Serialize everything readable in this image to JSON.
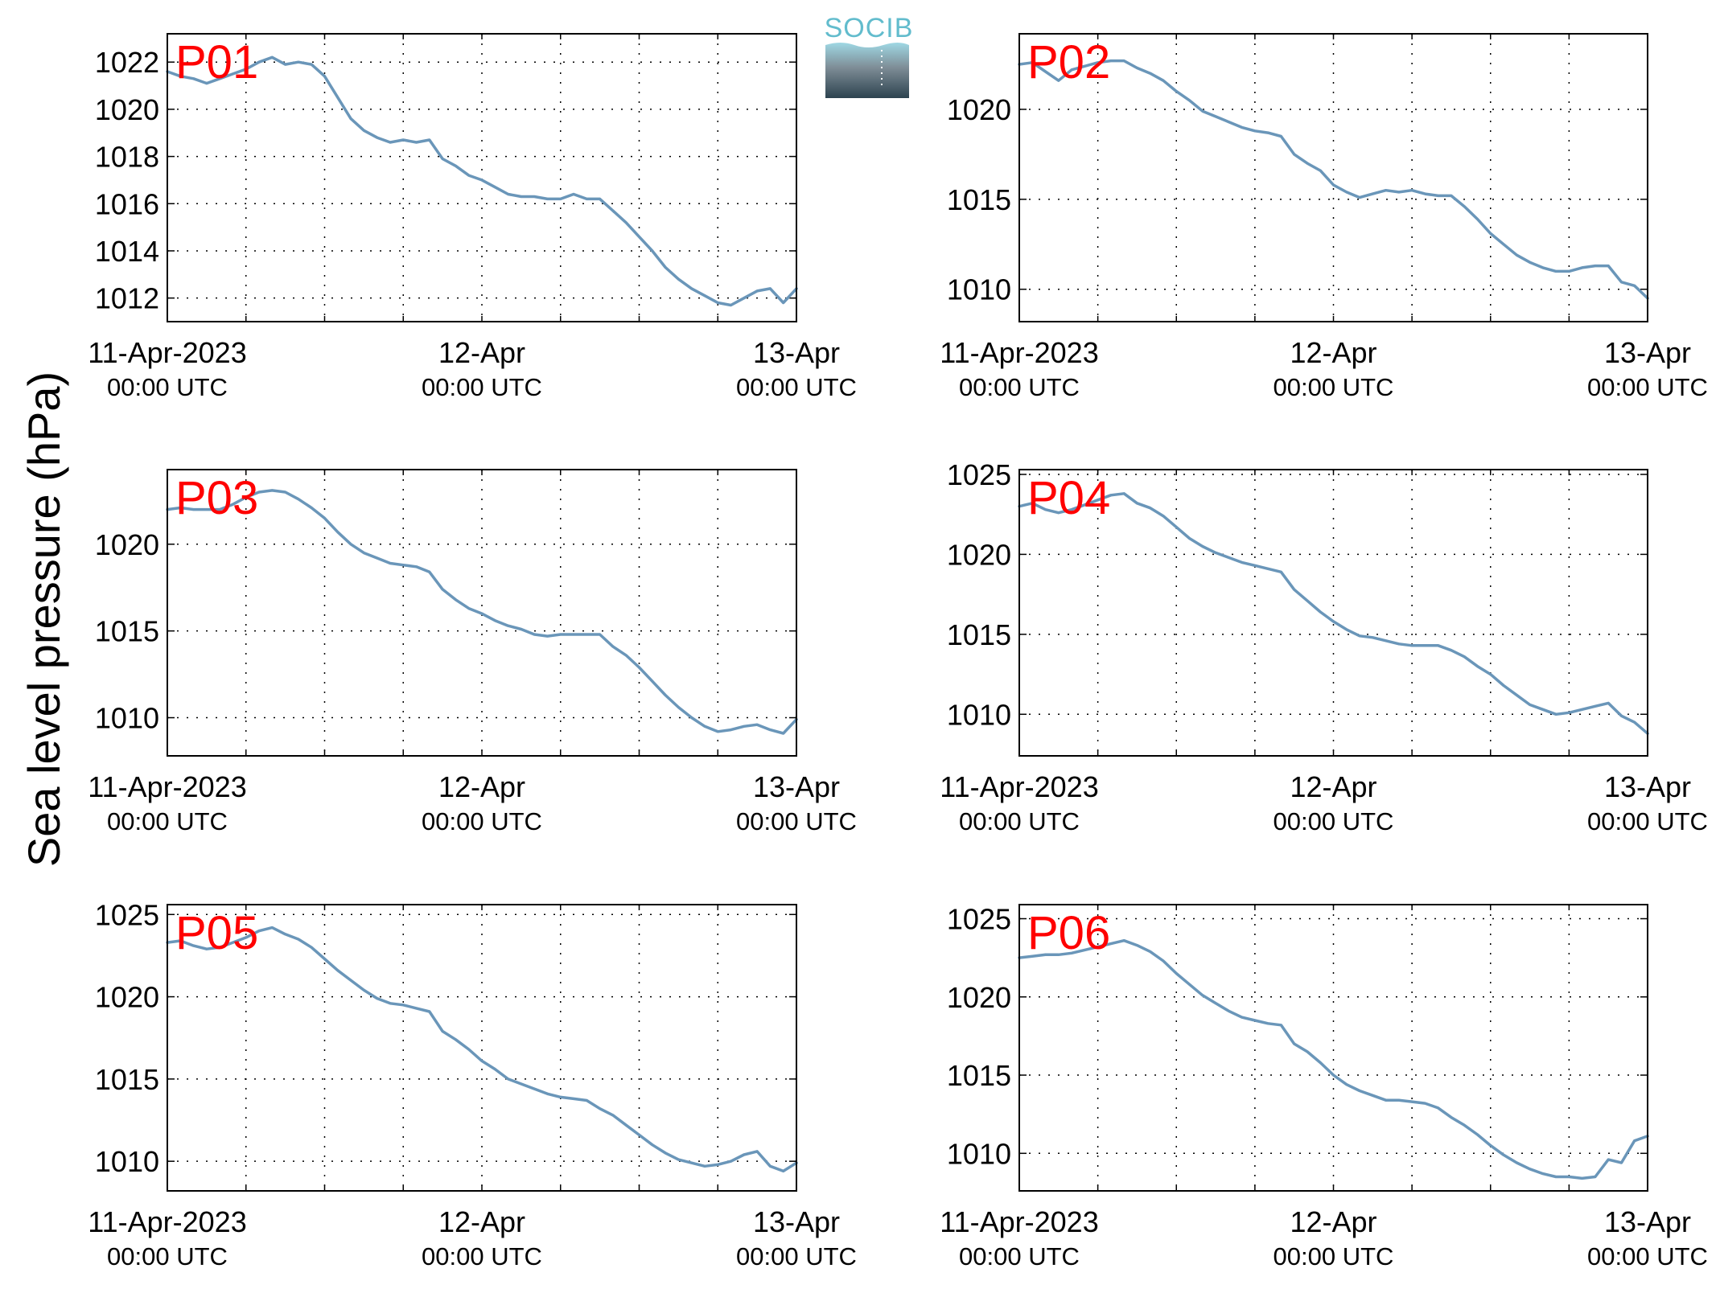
{
  "logo": {
    "text": "SOCIB"
  },
  "chart_data": {
    "type": "line",
    "ylabel": "Sea level pressure (hPa)",
    "line_color": "#6a96b9",
    "grid": true,
    "x_ticks": [
      {
        "x": 0,
        "label": "11-Apr-2023",
        "sublabel": "00:00 UTC"
      },
      {
        "x": 24,
        "label": "12-Apr",
        "sublabel": "00:00 UTC"
      },
      {
        "x": 48,
        "label": "13-Apr",
        "sublabel": "00:00 UTC"
      }
    ],
    "x_unit": "hours since 11-Apr-2023 00:00 UTC",
    "xlim": [
      0,
      48
    ],
    "panels": [
      {
        "name": "P01",
        "ylim": [
          1011,
          1023.2
        ],
        "yticks": [
          1012,
          1014,
          1016,
          1018,
          1020,
          1022
        ],
        "x": [
          0,
          1,
          2,
          3,
          4,
          5,
          6,
          7,
          8,
          9,
          10,
          11,
          12,
          13,
          14,
          15,
          16,
          17,
          18,
          19,
          20,
          21,
          22,
          23,
          24,
          25,
          26,
          27,
          28,
          29,
          30,
          31,
          32,
          33,
          34,
          35,
          36,
          37,
          38,
          39,
          40,
          41,
          42,
          43,
          44,
          45,
          46,
          47,
          48
        ],
        "y": [
          1021.6,
          1021.4,
          1021.3,
          1021.1,
          1021.3,
          1021.5,
          1021.7,
          1022.0,
          1022.2,
          1021.9,
          1022.0,
          1021.9,
          1021.4,
          1020.5,
          1019.6,
          1019.1,
          1018.8,
          1018.6,
          1018.7,
          1018.6,
          1018.7,
          1017.9,
          1017.6,
          1017.2,
          1017.0,
          1016.7,
          1016.4,
          1016.3,
          1016.3,
          1016.2,
          1016.2,
          1016.4,
          1016.2,
          1016.2,
          1015.7,
          1015.2,
          1014.6,
          1014.0,
          1013.3,
          1012.8,
          1012.4,
          1012.1,
          1011.8,
          1011.7,
          1012.0,
          1012.3,
          1012.4,
          1011.8,
          1012.4
        ]
      },
      {
        "name": "P02",
        "ylim": [
          1008.2,
          1024.2
        ],
        "yticks": [
          1010,
          1015,
          1020
        ],
        "x": [
          0,
          1,
          2,
          3,
          4,
          5,
          6,
          7,
          8,
          9,
          10,
          11,
          12,
          13,
          14,
          15,
          16,
          17,
          18,
          19,
          20,
          21,
          22,
          23,
          24,
          25,
          26,
          27,
          28,
          29,
          30,
          31,
          32,
          33,
          34,
          35,
          36,
          37,
          38,
          39,
          40,
          41,
          42,
          43,
          44,
          45,
          46,
          47,
          48
        ],
        "y": [
          1022.5,
          1022.6,
          1022.1,
          1021.6,
          1022.2,
          1022.4,
          1022.6,
          1022.7,
          1022.7,
          1022.3,
          1022.0,
          1021.6,
          1021.0,
          1020.5,
          1019.9,
          1019.6,
          1019.3,
          1019.0,
          1018.8,
          1018.7,
          1018.5,
          1017.5,
          1017.0,
          1016.6,
          1015.8,
          1015.4,
          1015.1,
          1015.3,
          1015.5,
          1015.4,
          1015.5,
          1015.3,
          1015.2,
          1015.2,
          1014.6,
          1013.9,
          1013.1,
          1012.5,
          1011.9,
          1011.5,
          1011.2,
          1011.0,
          1011.0,
          1011.2,
          1011.3,
          1011.3,
          1010.4,
          1010.2,
          1009.5
        ]
      },
      {
        "name": "P03",
        "ylim": [
          1007.8,
          1024.3
        ],
        "yticks": [
          1010,
          1015,
          1020
        ],
        "x": [
          0,
          1,
          2,
          3,
          4,
          5,
          6,
          7,
          8,
          9,
          10,
          11,
          12,
          13,
          14,
          15,
          16,
          17,
          18,
          19,
          20,
          21,
          22,
          23,
          24,
          25,
          26,
          27,
          28,
          29,
          30,
          31,
          32,
          33,
          34,
          35,
          36,
          37,
          38,
          39,
          40,
          41,
          42,
          43,
          44,
          45,
          46,
          47,
          48
        ],
        "y": [
          1022.0,
          1022.1,
          1022.0,
          1022.0,
          1022.0,
          1022.3,
          1022.7,
          1023.0,
          1023.1,
          1023.0,
          1022.6,
          1022.1,
          1021.5,
          1020.7,
          1020.0,
          1019.5,
          1019.2,
          1018.9,
          1018.8,
          1018.7,
          1018.4,
          1017.4,
          1016.8,
          1016.3,
          1016.0,
          1015.6,
          1015.3,
          1015.1,
          1014.8,
          1014.7,
          1014.8,
          1014.8,
          1014.8,
          1014.8,
          1014.1,
          1013.6,
          1012.9,
          1012.1,
          1011.3,
          1010.6,
          1010.0,
          1009.5,
          1009.2,
          1009.3,
          1009.5,
          1009.6,
          1009.3,
          1009.1,
          1009.9
        ]
      },
      {
        "name": "P04",
        "ylim": [
          1007.4,
          1025.3
        ],
        "yticks": [
          1010,
          1015,
          1020,
          1025
        ],
        "x": [
          0,
          1,
          2,
          3,
          4,
          5,
          6,
          7,
          8,
          9,
          10,
          11,
          12,
          13,
          14,
          15,
          16,
          17,
          18,
          19,
          20,
          21,
          22,
          23,
          24,
          25,
          26,
          27,
          28,
          29,
          30,
          31,
          32,
          33,
          34,
          35,
          36,
          37,
          38,
          39,
          40,
          41,
          42,
          43,
          44,
          45,
          46,
          47,
          48
        ],
        "y": [
          1023.0,
          1023.2,
          1022.8,
          1022.6,
          1022.8,
          1023.1,
          1023.4,
          1023.7,
          1023.8,
          1023.2,
          1022.9,
          1022.4,
          1021.7,
          1021.0,
          1020.5,
          1020.1,
          1019.8,
          1019.5,
          1019.3,
          1019.1,
          1018.9,
          1017.8,
          1017.1,
          1016.4,
          1015.8,
          1015.3,
          1014.9,
          1014.8,
          1014.6,
          1014.4,
          1014.3,
          1014.3,
          1014.3,
          1014.0,
          1013.6,
          1013.0,
          1012.5,
          1011.8,
          1011.2,
          1010.6,
          1010.3,
          1010.0,
          1010.1,
          1010.3,
          1010.5,
          1010.7,
          1009.9,
          1009.5,
          1008.8
        ]
      },
      {
        "name": "P05",
        "ylim": [
          1008.2,
          1025.6
        ],
        "yticks": [
          1010,
          1015,
          1020,
          1025
        ],
        "x": [
          0,
          1,
          2,
          3,
          4,
          5,
          6,
          7,
          8,
          9,
          10,
          11,
          12,
          13,
          14,
          15,
          16,
          17,
          18,
          19,
          20,
          21,
          22,
          23,
          24,
          25,
          26,
          27,
          28,
          29,
          30,
          31,
          32,
          33,
          34,
          35,
          36,
          37,
          38,
          39,
          40,
          41,
          42,
          43,
          44,
          45,
          46,
          47,
          48
        ],
        "y": [
          1023.3,
          1023.4,
          1023.1,
          1022.9,
          1023.0,
          1023.3,
          1023.6,
          1024.0,
          1024.2,
          1023.8,
          1023.5,
          1023.0,
          1022.3,
          1021.6,
          1021.0,
          1020.4,
          1019.9,
          1019.6,
          1019.5,
          1019.3,
          1019.1,
          1017.9,
          1017.4,
          1016.8,
          1016.1,
          1015.6,
          1015.0,
          1014.7,
          1014.4,
          1014.1,
          1013.9,
          1013.8,
          1013.7,
          1013.2,
          1012.8,
          1012.2,
          1011.6,
          1011.0,
          1010.5,
          1010.1,
          1009.9,
          1009.7,
          1009.8,
          1010.0,
          1010.4,
          1010.6,
          1009.7,
          1009.4,
          1009.9
        ]
      },
      {
        "name": "P06",
        "ylim": [
          1007.6,
          1025.9
        ],
        "yticks": [
          1010,
          1015,
          1020,
          1025
        ],
        "x": [
          0,
          1,
          2,
          3,
          4,
          5,
          6,
          7,
          8,
          9,
          10,
          11,
          12,
          13,
          14,
          15,
          16,
          17,
          18,
          19,
          20,
          21,
          22,
          23,
          24,
          25,
          26,
          27,
          28,
          29,
          30,
          31,
          32,
          33,
          34,
          35,
          36,
          37,
          38,
          39,
          40,
          41,
          42,
          43,
          44,
          45,
          46,
          47,
          48
        ],
        "y": [
          1022.5,
          1022.6,
          1022.7,
          1022.7,
          1022.8,
          1023.0,
          1023.2,
          1023.4,
          1023.6,
          1023.3,
          1022.9,
          1022.3,
          1021.5,
          1020.8,
          1020.1,
          1019.6,
          1019.1,
          1018.7,
          1018.5,
          1018.3,
          1018.2,
          1017.0,
          1016.5,
          1015.8,
          1015.0,
          1014.4,
          1014.0,
          1013.7,
          1013.4,
          1013.4,
          1013.3,
          1013.2,
          1012.9,
          1012.3,
          1011.8,
          1011.2,
          1010.5,
          1009.9,
          1009.4,
          1009.0,
          1008.7,
          1008.5,
          1008.5,
          1008.4,
          1008.5,
          1009.6,
          1009.4,
          1010.8,
          1011.1
        ]
      }
    ]
  }
}
